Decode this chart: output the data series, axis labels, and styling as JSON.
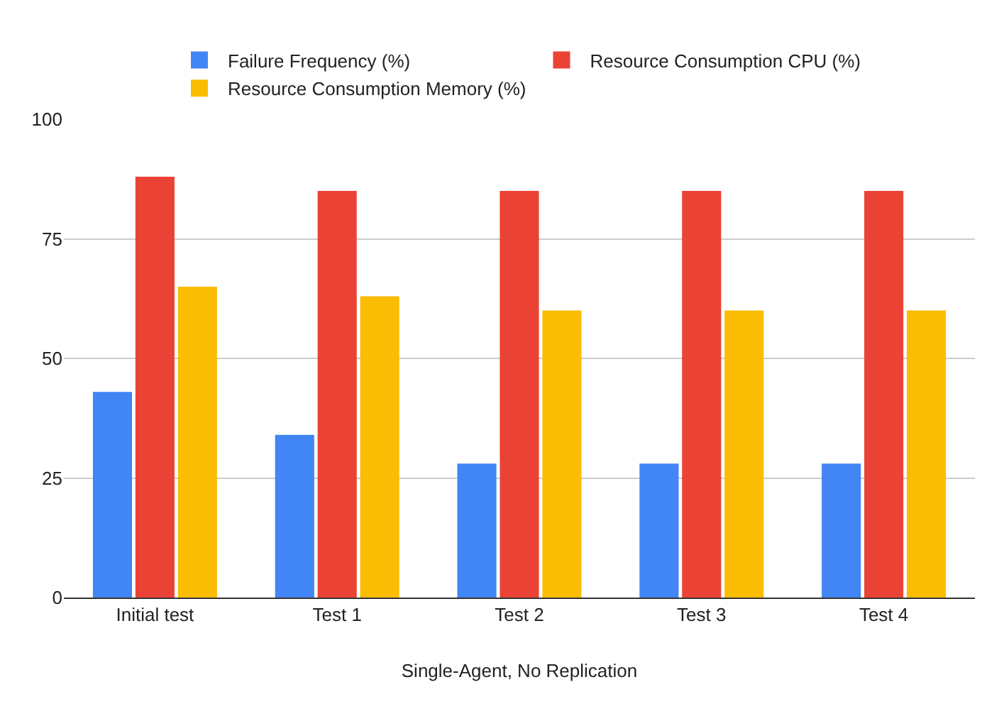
{
  "chart_data": {
    "type": "bar",
    "xlabel": "Single-Agent, No Replication",
    "categories": [
      "Initial test",
      "Test 1",
      "Test 2",
      "Test 3",
      "Test 4"
    ],
    "series": [
      {
        "name": "Failure Frequency (%)",
        "color": "#4285f4",
        "values": [
          43,
          34,
          28,
          28,
          28
        ]
      },
      {
        "name": "Resource Consumption CPU (%)",
        "color": "#ea4335",
        "values": [
          88,
          85,
          85,
          85,
          85
        ]
      },
      {
        "name": "Resource Consumption Memory (%)",
        "color": "#fbbc04",
        "values": [
          65,
          63,
          60,
          60,
          60
        ]
      }
    ],
    "ylim": [
      0,
      100
    ],
    "yticks": [
      0,
      25,
      50,
      75,
      100
    ],
    "grid": "y",
    "legend": "top"
  }
}
